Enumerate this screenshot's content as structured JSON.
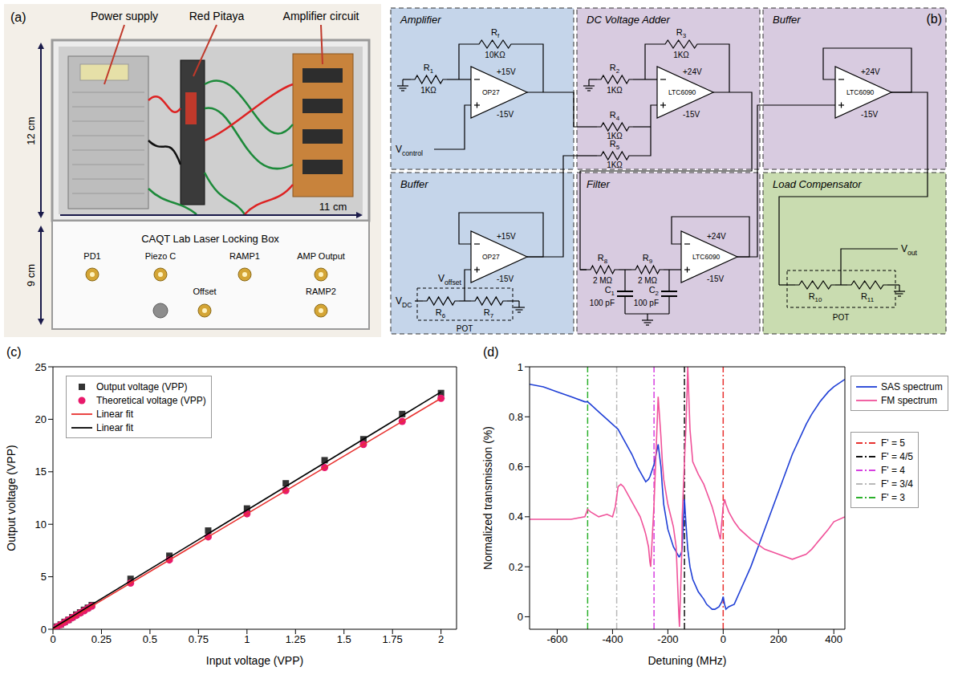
{
  "panels": [
    "(a)",
    "(b)",
    "(c)",
    "(d)"
  ],
  "photo": {
    "labels": [
      "Power supply",
      "Red Pitaya",
      "Amplifier circuit"
    ],
    "dimensions": [
      "12 cm",
      "11 cm",
      "9 cm"
    ],
    "front_panel": {
      "title": "CAQT Lab  Laser Locking Box",
      "connectors": [
        "PD1",
        "Piezo C",
        "RAMP1",
        "AMP Output"
      ],
      "connectors_row2": [
        "Offset",
        "RAMP2"
      ]
    }
  },
  "circuit": {
    "blocks": [
      {
        "title": "Amplifier",
        "opamp": "OP27",
        "supply": [
          "+15V",
          "-15V"
        ],
        "parts": [
          {
            "name": "R1",
            "value": "1KΩ"
          },
          {
            "name": "Rf",
            "value": "10KΩ"
          }
        ]
      },
      {
        "title": "DC Voltage Adder",
        "opamp": "LTC6090",
        "supply": [
          "+24V",
          "-15V"
        ],
        "parts": [
          {
            "name": "R2",
            "value": "1KΩ"
          },
          {
            "name": "R3",
            "value": "1KΩ"
          },
          {
            "name": "R4",
            "value": "1KΩ"
          },
          {
            "name": "R5",
            "value": "1KΩ"
          }
        ]
      },
      {
        "title": "Buffer",
        "opamp": "LTC6090",
        "supply": [
          "+24V",
          "-15V"
        ],
        "parts": []
      },
      {
        "title": "Buffer",
        "opamp": "OP27",
        "supply": [
          "+15V",
          "-15V"
        ],
        "parts": [
          {
            "name": "R6"
          },
          {
            "name": "R7"
          }
        ]
      },
      {
        "title": "Filter",
        "opamp": "LTC6090",
        "supply": [
          "+24V",
          "-15V"
        ],
        "parts": [
          {
            "name": "R8",
            "value": "2 MΩ"
          },
          {
            "name": "R9",
            "value": "2 MΩ"
          },
          {
            "name": "C1",
            "value": "100 pF"
          },
          {
            "name": "C2",
            "value": "100 pF"
          }
        ]
      },
      {
        "title": "Load Compensator",
        "parts": [
          {
            "name": "R10"
          },
          {
            "name": "R11"
          }
        ]
      }
    ],
    "signals": {
      "control": "Vcontrol",
      "offset": "Voffset",
      "dc": "VDC",
      "out": "Vout"
    },
    "pot": "POT"
  },
  "chart_data": [
    {
      "type": "scatter",
      "x_label": "Input voltage (VPP)",
      "y_label": "Output voltage (VPP)",
      "xlim": [
        0,
        2.08
      ],
      "ylim": [
        0,
        25
      ],
      "xticks": [
        0,
        0.25,
        0.5,
        0.75,
        1,
        1.25,
        1.5,
        1.75,
        2
      ],
      "yticks": [
        0,
        5,
        10,
        15,
        20,
        25
      ],
      "legend": "upper left",
      "series": [
        {
          "name": "Output voltage (VPP)",
          "color": "#333333",
          "marker": "square",
          "x": [
            0.02,
            0.04,
            0.06,
            0.08,
            0.1,
            0.12,
            0.14,
            0.16,
            0.18,
            0.2,
            0.4,
            0.6,
            0.8,
            1,
            1.2,
            1.4,
            1.6,
            1.8,
            2
          ],
          "values": [
            0.25,
            0.45,
            0.7,
            0.9,
            1.15,
            1.4,
            1.6,
            1.85,
            2.05,
            2.3,
            4.8,
            7.0,
            9.4,
            11.5,
            13.9,
            16.1,
            18.1,
            20.5,
            22.5
          ]
        },
        {
          "name": "Theoretical voltage (VPP)",
          "color": "#e8196b",
          "marker": "circle",
          "x": [
            0.02,
            0.04,
            0.06,
            0.08,
            0.1,
            0.12,
            0.14,
            0.16,
            0.18,
            0.2,
            0.4,
            0.6,
            0.8,
            1,
            1.2,
            1.4,
            1.6,
            1.8,
            2
          ],
          "values": [
            0.22,
            0.44,
            0.66,
            0.88,
            1.1,
            1.32,
            1.54,
            1.76,
            1.98,
            2.2,
            4.4,
            6.6,
            8.8,
            11,
            13.2,
            15.4,
            17.6,
            19.8,
            22
          ]
        },
        {
          "name": "Linear fit",
          "type": "line",
          "color": "#e8312f",
          "x": [
            0,
            2
          ],
          "values": [
            0,
            22
          ]
        },
        {
          "name": "Linear fit",
          "type": "line",
          "color": "#000000",
          "x": [
            0,
            2
          ],
          "values": [
            0.1,
            22.6
          ]
        }
      ]
    },
    {
      "type": "line",
      "x_label": "Detuning (MHz)",
      "y_label": "Normalized transmission (%)",
      "xlim": [
        -700,
        440
      ],
      "ylim": [
        -0.05,
        1
      ],
      "xticks": [
        -600,
        -400,
        -200,
        0,
        200,
        400
      ],
      "yticks": [
        0,
        0.2,
        0.4,
        0.6,
        0.8,
        1
      ],
      "legend": "right",
      "x": [
        -700,
        -650,
        -600,
        -550,
        -500,
        -490,
        -480,
        -450,
        -420,
        -400,
        -390,
        -380,
        -370,
        -360,
        -340,
        -330,
        -310,
        -300,
        -285,
        -280,
        -270,
        -265,
        -262,
        -250,
        -235,
        -225,
        -220,
        -215,
        -200,
        -180,
        -170,
        -160,
        -158,
        -150,
        -148,
        -140,
        -135,
        -130,
        -128,
        -120,
        -110,
        -90,
        -70,
        -60,
        -50,
        -40,
        -30,
        -15,
        -10,
        -5,
        0,
        5,
        10,
        20,
        40,
        60,
        100,
        150,
        200,
        250,
        300,
        320,
        350,
        380,
        400,
        440
      ],
      "series": [
        {
          "name": "SAS spectrum",
          "color": "#1f3fd6",
          "values": [
            0.93,
            0.92,
            0.9,
            0.88,
            0.86,
            0.86,
            0.85,
            0.82,
            0.79,
            0.77,
            0.76,
            0.75,
            0.73,
            0.71,
            0.67,
            0.65,
            0.6,
            0.58,
            0.55,
            0.54,
            0.55,
            0.56,
            0.57,
            0.61,
            0.69,
            0.6,
            0.52,
            0.45,
            0.35,
            0.28,
            0.26,
            0.24,
            0.24,
            0.26,
            0.28,
            0.47,
            0.38,
            0.3,
            0.27,
            0.2,
            0.15,
            0.1,
            0.07,
            0.05,
            0.04,
            0.03,
            0.03,
            0.04,
            0.05,
            0.06,
            0.08,
            0.05,
            0.03,
            0.04,
            0.05,
            0.1,
            0.2,
            0.35,
            0.5,
            0.65,
            0.77,
            0.81,
            0.86,
            0.9,
            0.92,
            0.95
          ]
        },
        {
          "name": "FM spectrum",
          "color": "#f0529a",
          "values": [
            0.39,
            0.39,
            0.39,
            0.39,
            0.4,
            0.43,
            0.42,
            0.4,
            0.41,
            0.4,
            0.44,
            0.52,
            0.53,
            0.52,
            0.48,
            0.46,
            0.42,
            0.4,
            0.35,
            0.33,
            0.28,
            0.22,
            0.2,
            0.45,
            0.88,
            0.72,
            0.62,
            0.55,
            0.45,
            0.36,
            0.28,
            0.0,
            -0.04,
            0.25,
            0.4,
            0.62,
            0.75,
            0.92,
            1.0,
            0.75,
            0.62,
            0.57,
            0.53,
            0.5,
            0.47,
            0.44,
            0.4,
            0.33,
            0.31,
            0.38,
            0.44,
            0.47,
            0.45,
            0.42,
            0.38,
            0.35,
            0.31,
            0.27,
            0.25,
            0.23,
            0.25,
            0.27,
            0.31,
            0.35,
            0.38,
            0.4
          ]
        }
      ],
      "transitions": [
        {
          "label": "F' = 5",
          "x": 0,
          "color": "#e8312f",
          "line_style": "dashdot"
        },
        {
          "label": "F' = 4/5",
          "x": -140,
          "color": "#111111",
          "line_style": "dashdot"
        },
        {
          "label": "F' = 4",
          "x": -250,
          "color": "#d63fe0",
          "line_style": "dashdot"
        },
        {
          "label": "F' = 3/4",
          "x": -385,
          "color": "#b8b8b8",
          "line_style": "dashdot"
        },
        {
          "label": "F' = 3",
          "x": -490,
          "color": "#2bb02b",
          "line_style": "dashdot"
        }
      ]
    }
  ]
}
